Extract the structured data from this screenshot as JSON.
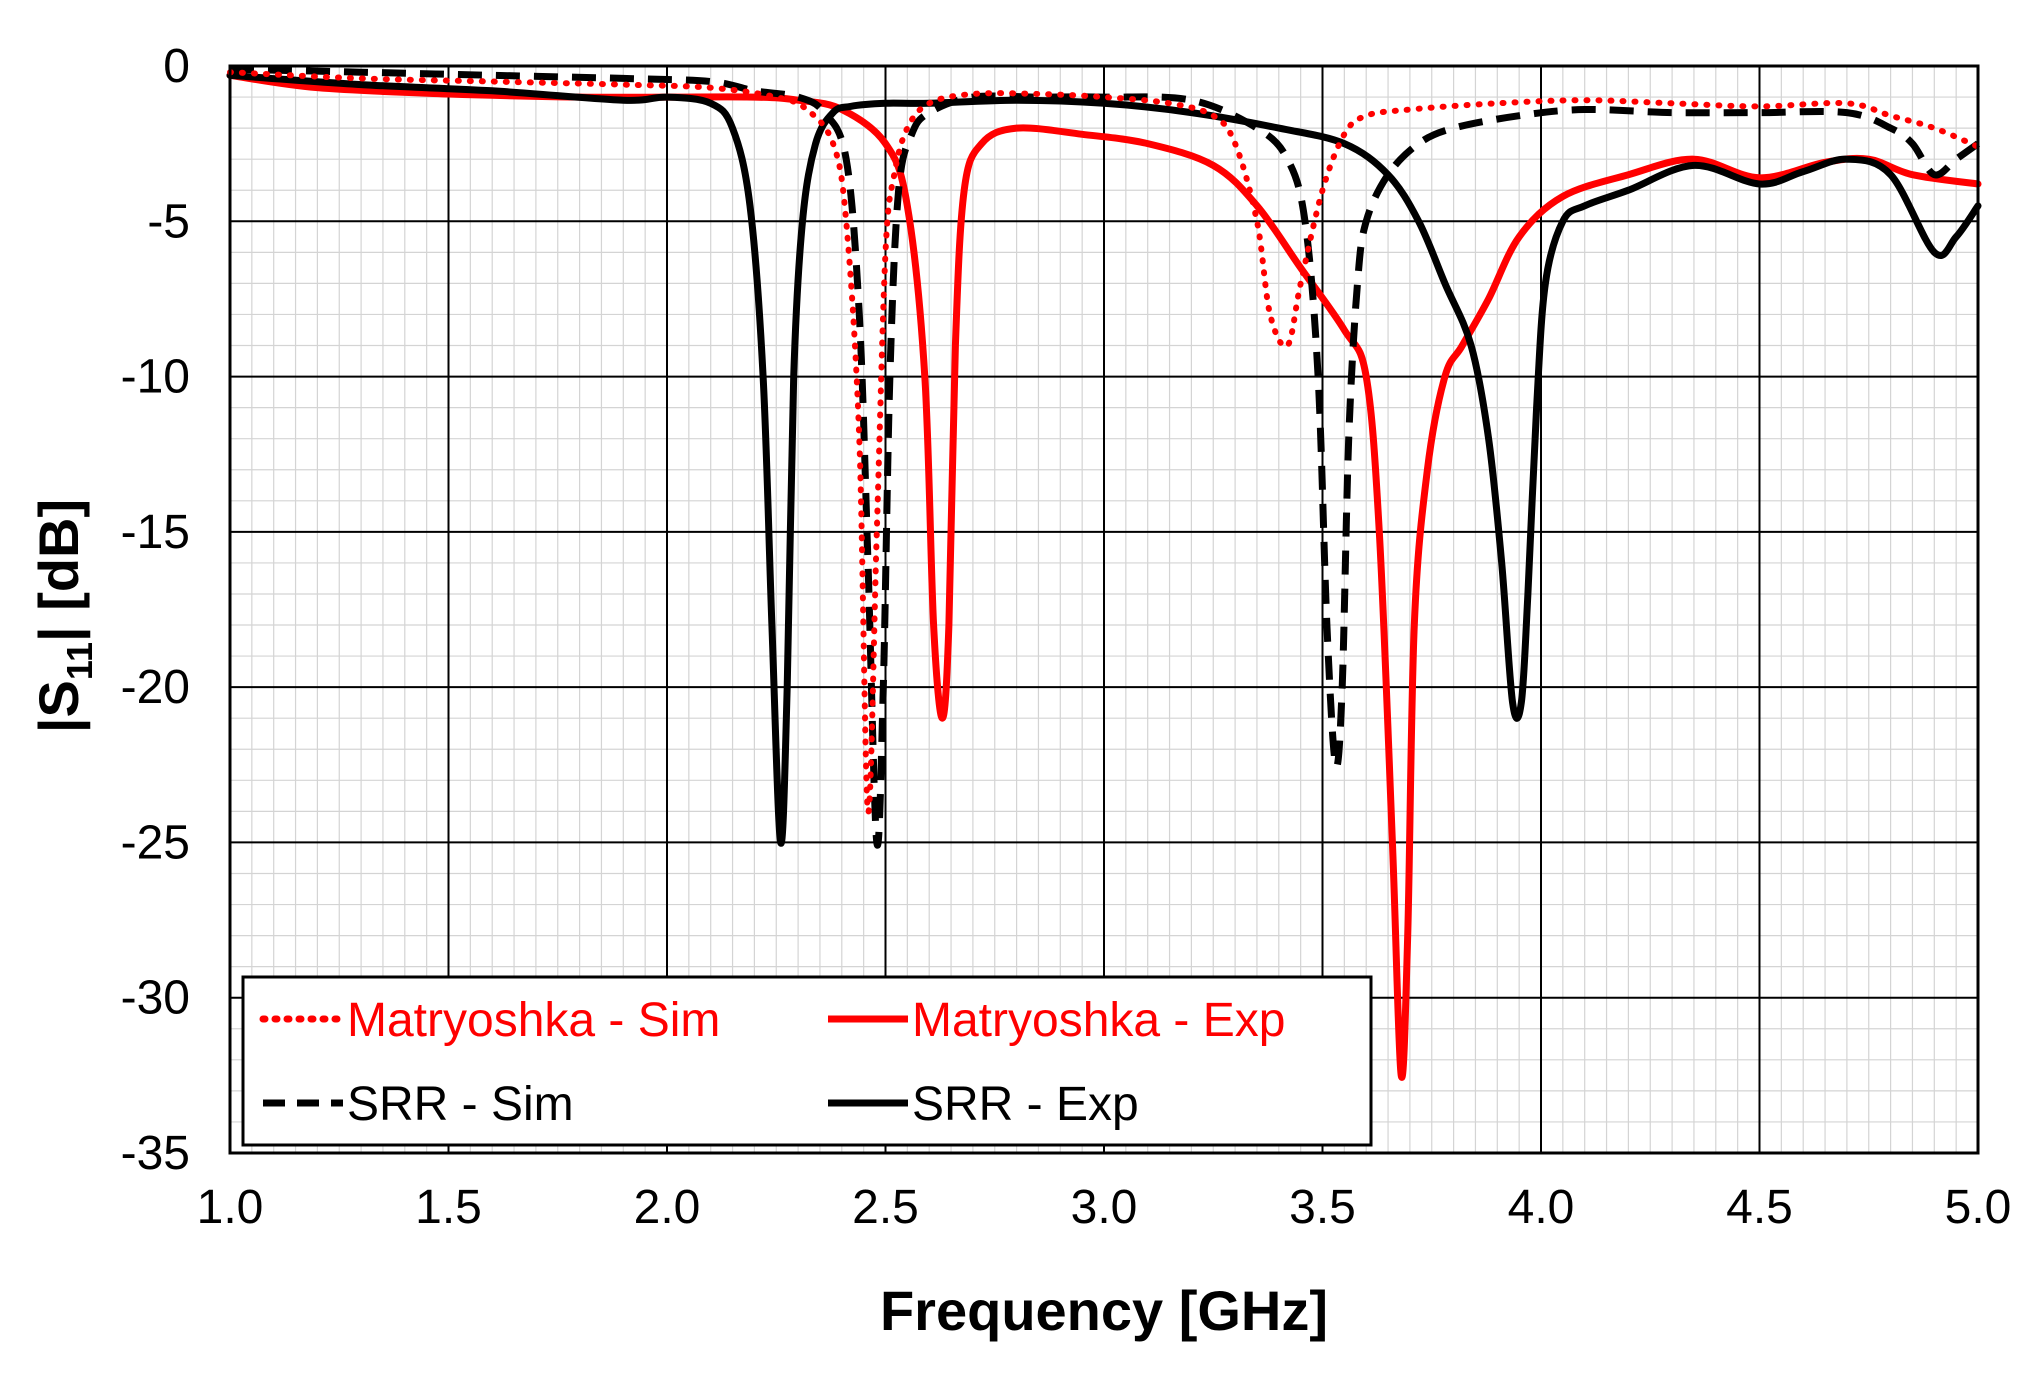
{
  "chart_data": {
    "type": "line",
    "title": "",
    "xlabel": "Frequency [GHz]",
    "ylabel_main": "|S",
    "ylabel_sub": "11",
    "ylabel_tail": "| [dB]",
    "xlim": [
      1.0,
      5.0
    ],
    "ylim": [
      -35,
      0
    ],
    "grid": "major and minor",
    "legend_position": "bottom-left",
    "x_ticks": [
      1.0,
      1.5,
      2.0,
      2.5,
      3.0,
      3.5,
      4.0,
      4.5,
      5.0
    ],
    "x_tick_labels": [
      "1.0",
      "1.5",
      "2.0",
      "2.5",
      "3.0",
      "3.5",
      "4.0",
      "4.5",
      "5.0"
    ],
    "y_ticks": [
      0,
      -5,
      -10,
      -15,
      -20,
      -25,
      -30,
      -35
    ],
    "y_tick_labels": [
      "0",
      "-5",
      "-10",
      "-15",
      "-20",
      "-25",
      "-30",
      "-35"
    ],
    "series": [
      {
        "name": "Matryoshka - Sim",
        "color": "#ff0000",
        "style": "dotted",
        "x": [
          1.0,
          1.3,
          1.6,
          1.9,
          2.1,
          2.25,
          2.32,
          2.38,
          2.41,
          2.44,
          2.46,
          2.48,
          2.5,
          2.52,
          2.55,
          2.6,
          2.7,
          2.85,
          3.0,
          3.15,
          3.25,
          3.3,
          3.35,
          3.38,
          3.42,
          3.45,
          3.5,
          3.55,
          3.6,
          3.7,
          3.9,
          4.1,
          4.3,
          4.5,
          4.7,
          4.8,
          4.9,
          5.0
        ],
        "y": [
          -0.2,
          -0.4,
          -0.5,
          -0.6,
          -0.7,
          -1.0,
          -1.4,
          -2.5,
          -5.0,
          -12.0,
          -24.0,
          -15.0,
          -6.0,
          -3.5,
          -2.0,
          -1.2,
          -0.9,
          -0.9,
          -1.0,
          -1.2,
          -1.6,
          -2.5,
          -5.0,
          -8.0,
          -9.0,
          -7.0,
          -4.0,
          -2.2,
          -1.6,
          -1.4,
          -1.2,
          -1.1,
          -1.2,
          -1.3,
          -1.2,
          -1.6,
          -2.0,
          -2.6
        ]
      },
      {
        "name": "Matryoshka - Exp",
        "color": "#ff0000",
        "style": "solid",
        "x": [
          1.0,
          1.2,
          1.5,
          1.8,
          2.0,
          2.2,
          2.3,
          2.4,
          2.5,
          2.55,
          2.59,
          2.61,
          2.63,
          2.645,
          2.66,
          2.68,
          2.72,
          2.8,
          2.95,
          3.1,
          3.25,
          3.35,
          3.45,
          3.55,
          3.6,
          3.63,
          3.66,
          3.68,
          3.695,
          3.71,
          3.74,
          3.78,
          3.82,
          3.88,
          3.95,
          4.05,
          4.2,
          4.35,
          4.5,
          4.65,
          4.75,
          4.85,
          5.0
        ],
        "y": [
          -0.3,
          -0.7,
          -0.9,
          -1.0,
          -1.0,
          -1.0,
          -1.1,
          -1.4,
          -2.5,
          -4.5,
          -10.0,
          -18.0,
          -21.0,
          -18.0,
          -9.0,
          -4.0,
          -2.5,
          -2.0,
          -2.2,
          -2.5,
          -3.2,
          -4.5,
          -6.5,
          -8.5,
          -10.0,
          -15.0,
          -25.0,
          -32.5,
          -28.0,
          -18.0,
          -13.0,
          -10.0,
          -9.0,
          -7.5,
          -5.5,
          -4.2,
          -3.5,
          -3.0,
          -3.6,
          -3.1,
          -3.0,
          -3.5,
          -3.8
        ]
      },
      {
        "name": "SRR - Sim",
        "color": "#000000",
        "style": "dashed",
        "x": [
          1.0,
          1.3,
          1.6,
          1.9,
          2.1,
          2.2,
          2.3,
          2.36,
          2.41,
          2.44,
          2.46,
          2.48,
          2.495,
          2.51,
          2.53,
          2.56,
          2.6,
          2.7,
          2.85,
          3.0,
          3.2,
          3.35,
          3.42,
          3.46,
          3.49,
          3.51,
          3.53,
          3.545,
          3.56,
          3.58,
          3.6,
          3.65,
          3.72,
          3.8,
          3.95,
          4.1,
          4.3,
          4.5,
          4.7,
          4.8,
          4.85,
          4.9,
          4.95,
          5.0
        ],
        "y": [
          -0.1,
          -0.2,
          -0.3,
          -0.4,
          -0.5,
          -0.8,
          -1.0,
          -1.5,
          -3.0,
          -8.0,
          -16.0,
          -25.0,
          -20.0,
          -10.0,
          -4.0,
          -2.2,
          -1.5,
          -1.0,
          -1.0,
          -1.0,
          -1.1,
          -2.0,
          -3.0,
          -5.0,
          -10.0,
          -18.0,
          -22.5,
          -20.0,
          -12.0,
          -7.0,
          -5.0,
          -3.5,
          -2.5,
          -2.0,
          -1.6,
          -1.4,
          -1.5,
          -1.5,
          -1.5,
          -2.0,
          -2.5,
          -3.5,
          -3.0,
          -2.5
        ]
      },
      {
        "name": "SRR - Exp",
        "color": "#000000",
        "style": "solid",
        "x": [
          1.0,
          1.3,
          1.6,
          1.9,
          2.0,
          2.1,
          2.15,
          2.19,
          2.22,
          2.24,
          2.26,
          2.275,
          2.29,
          2.31,
          2.34,
          2.38,
          2.42,
          2.5,
          2.6,
          2.8,
          3.0,
          3.2,
          3.4,
          3.55,
          3.65,
          3.72,
          3.78,
          3.84,
          3.88,
          3.91,
          3.935,
          3.955,
          3.97,
          3.99,
          4.01,
          4.05,
          4.1,
          4.2,
          4.35,
          4.5,
          4.6,
          4.7,
          4.8,
          4.9,
          4.95,
          5.0
        ],
        "y": [
          -0.3,
          -0.6,
          -0.8,
          -1.1,
          -1.0,
          -1.2,
          -2.0,
          -4.5,
          -10.0,
          -18.0,
          -25.0,
          -20.0,
          -10.0,
          -5.0,
          -2.5,
          -1.5,
          -1.3,
          -1.2,
          -1.2,
          -1.1,
          -1.2,
          -1.5,
          -2.0,
          -2.5,
          -3.5,
          -5.0,
          -7.0,
          -9.0,
          -12.0,
          -16.0,
          -20.5,
          -20.5,
          -17.0,
          -11.0,
          -7.0,
          -5.0,
          -4.5,
          -4.0,
          -3.2,
          -3.8,
          -3.4,
          -3.0,
          -3.5,
          -6.0,
          -5.5,
          -4.5
        ]
      }
    ]
  }
}
